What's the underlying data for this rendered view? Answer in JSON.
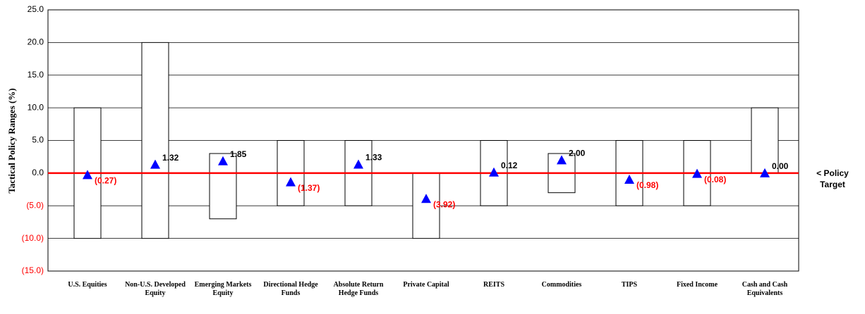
{
  "chart_data": {
    "type": "range",
    "y_label": "Tactical Policy Ranges (%)",
    "annotation": "< Policy Target",
    "categories": [
      "U.S. Equities",
      "Non-U.S. Developed Equity",
      "Emerging Markets Equity",
      "Directional Hedge Funds",
      "Absolute Return Hedge Funds",
      "Private Capital",
      "REITS",
      "Commodities",
      "TIPS",
      "Fixed Income",
      "Cash and Cash Equivalents"
    ],
    "low": [
      -10,
      -10,
      -7,
      -5,
      -5,
      -10,
      -5,
      -3,
      -5,
      -5,
      0
    ],
    "high": [
      10,
      20,
      3,
      5,
      5,
      0,
      5,
      3,
      5,
      5,
      10
    ],
    "values": [
      -0.27,
      1.32,
      1.85,
      -1.37,
      1.33,
      -3.92,
      0.12,
      2.0,
      -0.98,
      -0.08,
      0.0
    ],
    "value_labels": [
      "(0.27)",
      "1.32",
      "1.85",
      "(1.37)",
      "1.33",
      "(3.92)",
      "0.12",
      "2.00",
      "(0.98)",
      "(0.08)",
      "0.00"
    ],
    "marker_color": "#0000ff",
    "target_line_color": "#ff0000",
    "label_color": "#000000",
    "negative_color": "#ff0000",
    "ylim": [
      -15,
      25
    ],
    "yticks": [
      {
        "value": 25,
        "label": "25.0"
      },
      {
        "value": 20,
        "label": "20.0"
      },
      {
        "value": 15,
        "label": "15.0"
      },
      {
        "value": 10,
        "label": "10.0"
      },
      {
        "value": 5,
        "label": "5.0"
      },
      {
        "value": 0,
        "label": "0.0"
      },
      {
        "value": -5,
        "label": "(5.0)"
      },
      {
        "value": -10,
        "label": "(10.0)"
      },
      {
        "value": -15,
        "label": "(15.0)"
      }
    ],
    "grid": true
  }
}
